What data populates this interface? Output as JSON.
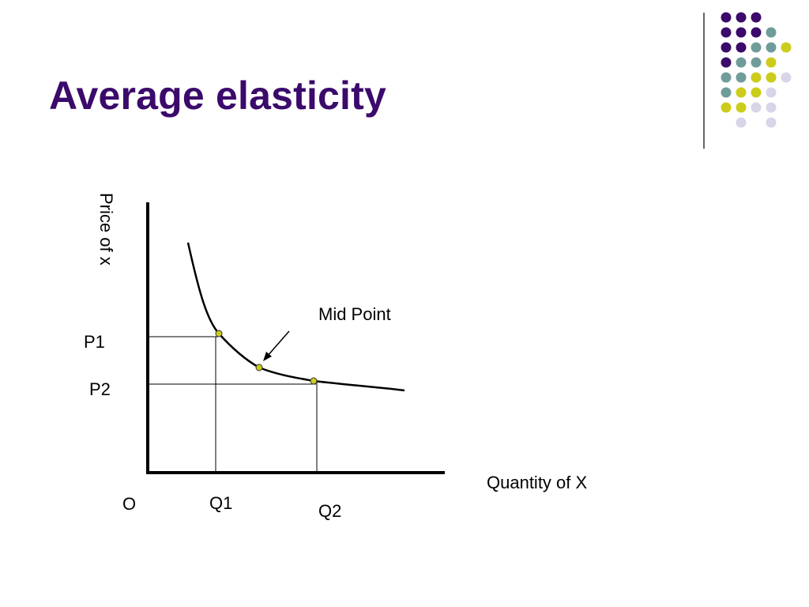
{
  "slide": {
    "title": "Average elasticity"
  },
  "decoration": {
    "dot_colors": {
      "purple": "#3b0a6b",
      "teal": "#6f9c9b",
      "yellow": "#cccc1a",
      "lavender": "#d8d5e8"
    }
  },
  "diagram": {
    "y_axis_label": "Price of x",
    "x_axis_label": "Quantity of X",
    "origin_label": "O",
    "p1_label": "P1",
    "p2_label": "P2",
    "q1_label": "Q1",
    "q2_label": "Q2",
    "midpoint_label": "Mid Point",
    "point_color": "#cccc1a",
    "curve_color": "#000000"
  }
}
